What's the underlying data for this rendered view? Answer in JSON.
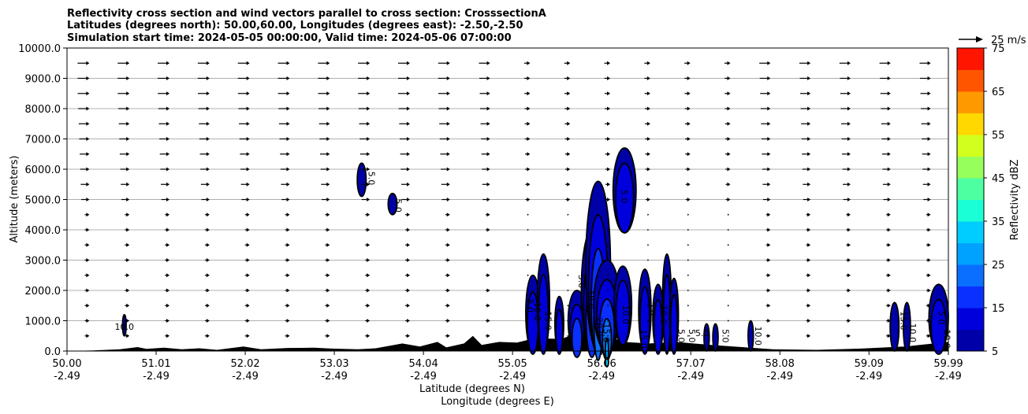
{
  "chart_data": {
    "type": "area",
    "title_lines": [
      "Reflectivity cross section and wind vectors parallel to cross section: CrosssectionA",
      "Latitudes (degrees north): 50.00,60.00, Longitudes (degrees east): -2.50,-2.50",
      "Simulation start time: 2024-05-05 00:00:00, Valid time: 2024-05-06 07:00:00"
    ],
    "ylabel": "Altitude (meters)",
    "xlabel": "Latitude (degrees N)",
    "xlabel2": "Longitude (degrees E)",
    "ylim": [
      0,
      10000
    ],
    "xlim": [
      50.0,
      59.99
    ],
    "y_ticks": [
      "0.0",
      "1000.0",
      "2000.0",
      "3000.0",
      "4000.0",
      "5000.0",
      "6000.0",
      "7000.0",
      "8000.0",
      "9000.0",
      "10000.0"
    ],
    "x_ticks": [
      {
        "lat": "50.00",
        "lon": "-2.49"
      },
      {
        "lat": "51.01",
        "lon": "-2.49"
      },
      {
        "lat": "52.02",
        "lon": "-2.49"
      },
      {
        "lat": "53.03",
        "lon": "-2.49"
      },
      {
        "lat": "54.04",
        "lon": "-2.49"
      },
      {
        "lat": "55.05",
        "lon": "-2.49"
      },
      {
        "lat": "56.06",
        "lon": "-2.49"
      },
      {
        "lat": "57.07",
        "lon": "-2.49"
      },
      {
        "lat": "58.08",
        "lon": "-2.49"
      },
      {
        "lat": "59.09",
        "lon": "-2.49"
      },
      {
        "lat": "59.99",
        "lon": "-2.49"
      }
    ],
    "grid": "horizontal",
    "colorbar": {
      "label": "Reflectivity dBZ",
      "levels": [
        5,
        10,
        15,
        20,
        25,
        30,
        35,
        40,
        45,
        50,
        55,
        60,
        65,
        70,
        75
      ],
      "tick_labels": [
        "5",
        "15",
        "25",
        "35",
        "45",
        "55",
        "65",
        "75"
      ],
      "colors": [
        "#0000a8",
        "#0000dd",
        "#0a30ff",
        "#0a6eff",
        "#00a2ff",
        "#00cdff",
        "#1bffd6",
        "#4dffa0",
        "#96ff5c",
        "#d2ff1e",
        "#ffd800",
        "#ff9900",
        "#ff5500",
        "#ff1500",
        "#aa0000"
      ]
    },
    "quiver_key": "25 m/s",
    "terrain": [
      [
        50.0,
        0
      ],
      [
        50.3,
        20
      ],
      [
        50.6,
        60
      ],
      [
        50.8,
        130
      ],
      [
        50.9,
        70
      ],
      [
        51.1,
        110
      ],
      [
        51.3,
        60
      ],
      [
        51.5,
        90
      ],
      [
        51.7,
        40
      ],
      [
        52.0,
        150
      ],
      [
        52.2,
        60
      ],
      [
        52.5,
        100
      ],
      [
        52.8,
        110
      ],
      [
        53.0,
        80
      ],
      [
        53.3,
        60
      ],
      [
        53.5,
        90
      ],
      [
        53.8,
        250
      ],
      [
        54.0,
        150
      ],
      [
        54.2,
        300
      ],
      [
        54.3,
        120
      ],
      [
        54.5,
        250
      ],
      [
        54.6,
        500
      ],
      [
        54.7,
        200
      ],
      [
        54.9,
        300
      ],
      [
        55.1,
        280
      ],
      [
        55.3,
        420
      ],
      [
        55.6,
        400
      ],
      [
        55.8,
        600
      ],
      [
        56.06,
        600
      ],
      [
        56.3,
        300
      ],
      [
        56.6,
        250
      ],
      [
        56.9,
        300
      ],
      [
        57.3,
        200
      ],
      [
        57.7,
        120
      ],
      [
        58.0,
        60
      ],
      [
        58.5,
        40
      ],
      [
        59.0,
        80
      ],
      [
        59.5,
        150
      ],
      [
        59.99,
        300
      ]
    ],
    "contour_labels": [
      "10.0",
      "5.0",
      "5.0",
      "5.0",
      "10.0",
      "15.0",
      "5.0",
      "10.0",
      "20.0",
      "15.0",
      "5.0",
      "10.0",
      "15.0",
      "5.0",
      "10.0",
      "5.0",
      "5.0",
      "5.0",
      "5.0",
      "10.0",
      "15.0",
      "10.0",
      "5.0",
      "10.0"
    ],
    "cells": [
      {
        "lat": 50.65,
        "base": 500,
        "top": 1200,
        "w": 0.02,
        "level": 0
      },
      {
        "lat": 53.34,
        "base": 5100,
        "top": 6200,
        "w": 0.05,
        "level": 0
      },
      {
        "lat": 53.69,
        "base": 4500,
        "top": 5200,
        "w": 0.05,
        "level": 0
      },
      {
        "lat": 55.28,
        "base": 0,
        "top": 2500,
        "w": 0.08,
        "level": 1
      },
      {
        "lat": 55.4,
        "base": 0,
        "top": 3200,
        "w": 0.07,
        "level": 1
      },
      {
        "lat": 55.58,
        "base": 0,
        "top": 1800,
        "w": 0.05,
        "level": 1
      },
      {
        "lat": 55.78,
        "base": 0,
        "top": 2000,
        "w": 0.1,
        "level": 2
      },
      {
        "lat": 55.95,
        "base": 0,
        "top": 4000,
        "w": 0.12,
        "level": 2
      },
      {
        "lat": 56.02,
        "base": 0,
        "top": 5600,
        "w": 0.14,
        "level": 3
      },
      {
        "lat": 56.12,
        "base": 0,
        "top": 3000,
        "w": 0.15,
        "level": 5
      },
      {
        "lat": 56.32,
        "base": 3900,
        "top": 6700,
        "w": 0.13,
        "level": 1
      },
      {
        "lat": 56.3,
        "base": 200,
        "top": 2800,
        "w": 0.1,
        "level": 1
      },
      {
        "lat": 56.55,
        "base": 0,
        "top": 2700,
        "w": 0.07,
        "level": 1
      },
      {
        "lat": 56.7,
        "base": 0,
        "top": 2200,
        "w": 0.06,
        "level": 1
      },
      {
        "lat": 56.8,
        "base": 0,
        "top": 3200,
        "w": 0.05,
        "level": 1
      },
      {
        "lat": 56.88,
        "base": 0,
        "top": 2400,
        "w": 0.05,
        "level": 1
      },
      {
        "lat": 57.25,
        "base": 0,
        "top": 900,
        "w": 0.03,
        "level": 0
      },
      {
        "lat": 57.35,
        "base": 0,
        "top": 900,
        "w": 0.03,
        "level": 0
      },
      {
        "lat": 57.75,
        "base": 0,
        "top": 1000,
        "w": 0.03,
        "level": 0
      },
      {
        "lat": 59.38,
        "base": 0,
        "top": 1600,
        "w": 0.05,
        "level": 0
      },
      {
        "lat": 59.52,
        "base": 0,
        "top": 1600,
        "w": 0.04,
        "level": 0
      },
      {
        "lat": 59.88,
        "base": 0,
        "top": 2200,
        "w": 0.11,
        "level": 1
      }
    ]
  }
}
